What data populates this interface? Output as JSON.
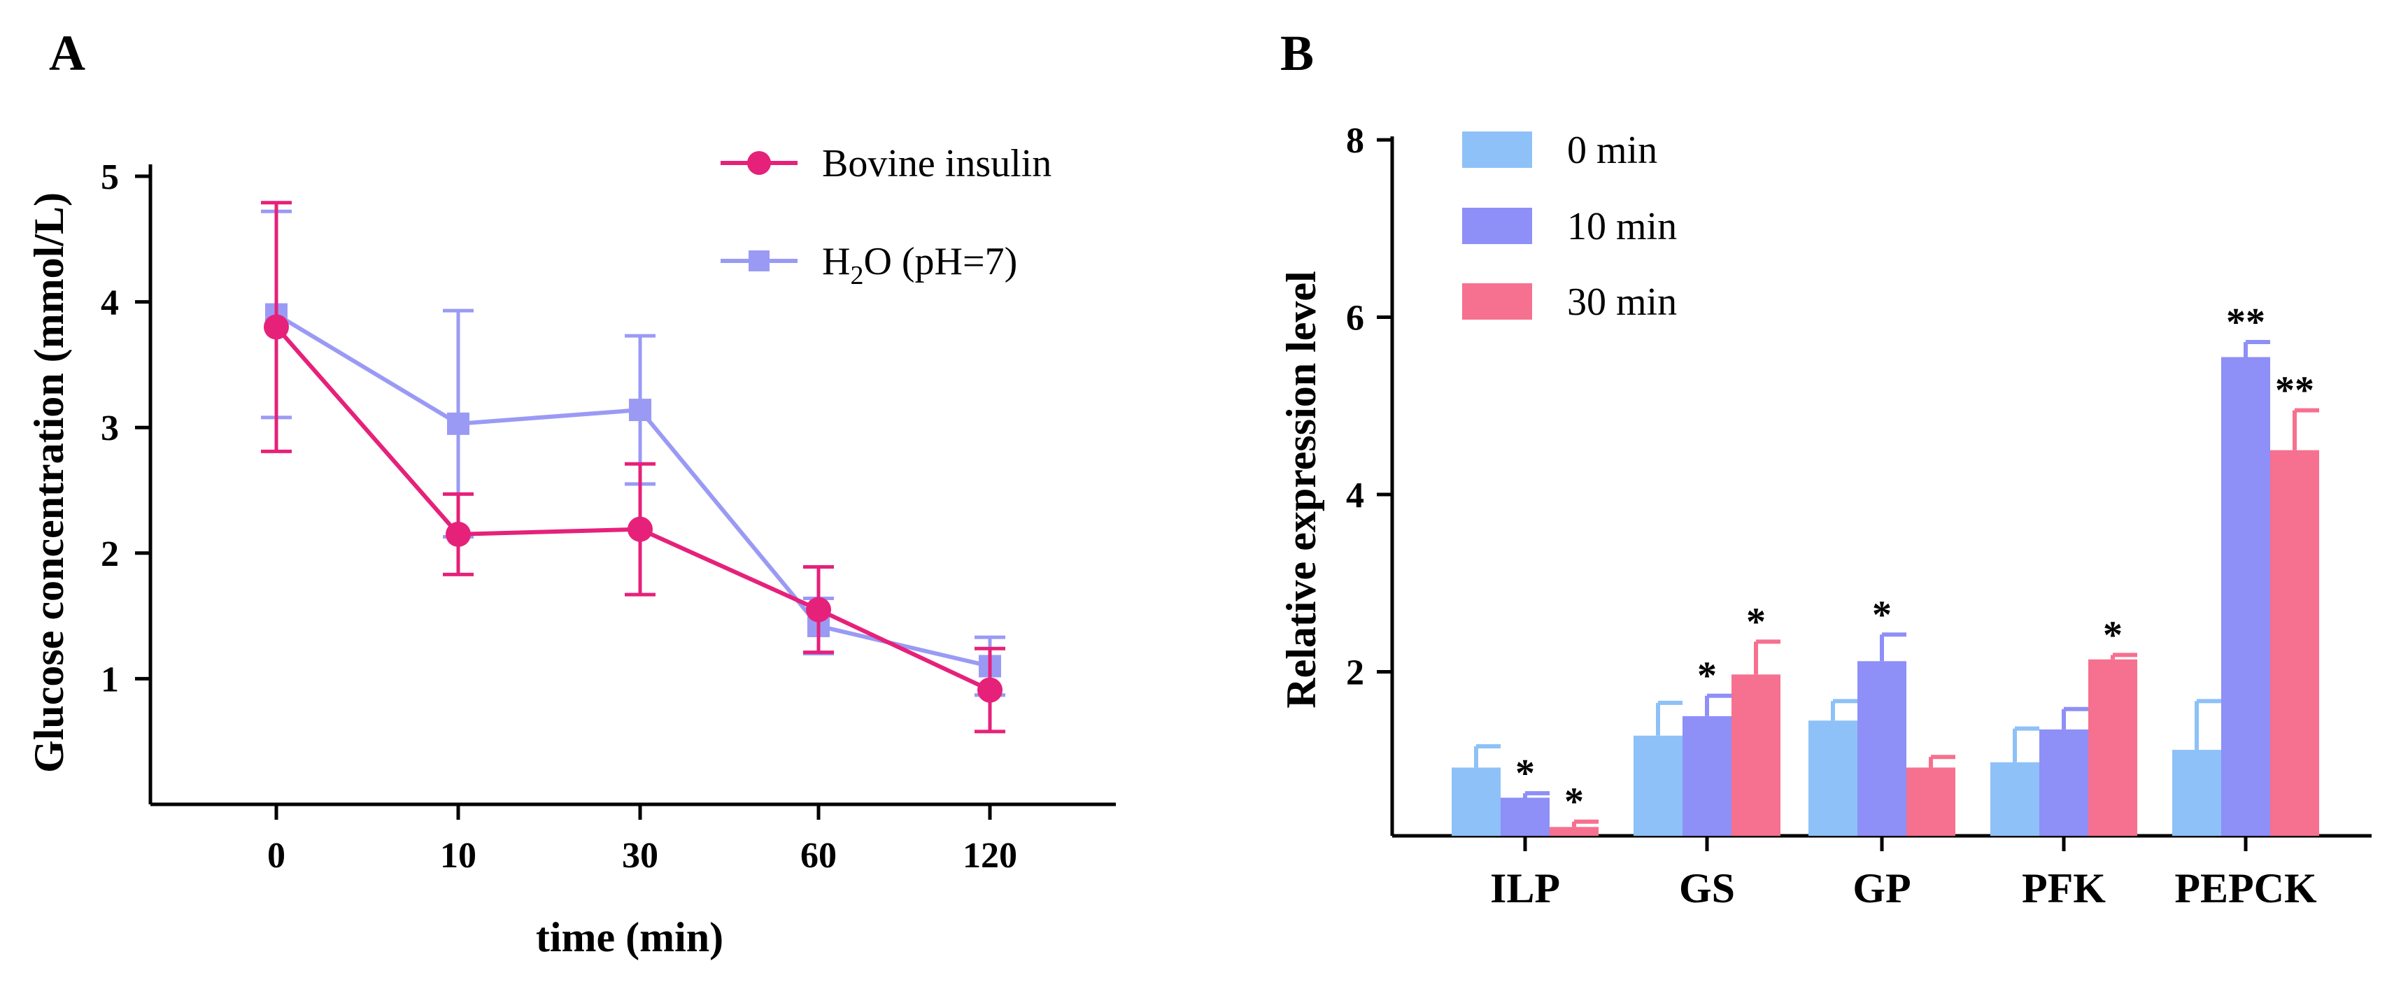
{
  "chart_data": [
    {
      "panel": "A",
      "type": "line",
      "xlabel": "time (min)",
      "ylabel": "Glucose concentration (mmol/L)",
      "categories": [
        "0",
        "10",
        "30",
        "60",
        "120"
      ],
      "ylim": [
        0,
        5
      ],
      "yticks": [
        1,
        2,
        3,
        4,
        5
      ],
      "legend_position": "top-right",
      "series": [
        {
          "name": "Bovine insulin",
          "color": "#e6217a",
          "marker": "circle",
          "values": [
            3.8,
            2.15,
            2.19,
            1.55,
            0.91
          ],
          "errors": [
            0.99,
            0.32,
            0.52,
            0.34,
            0.33
          ]
        },
        {
          "name_parts": [
            "H",
            "2",
            "O (pH=7)"
          ],
          "color": "#9a9af5",
          "marker": "square",
          "values": [
            3.9,
            3.03,
            3.14,
            1.42,
            1.1
          ],
          "errors": [
            0.82,
            0.9,
            0.59,
            0.22,
            0.23
          ]
        }
      ]
    },
    {
      "panel": "B",
      "type": "bar",
      "xlabel": "",
      "ylabel": "Relative expression level",
      "categories": [
        "ILP",
        "GS",
        "GP",
        "PFK",
        "PEPCK"
      ],
      "ylim": [
        0,
        8
      ],
      "ymin_visible": 0.15,
      "yticks": [
        2,
        4,
        6,
        8
      ],
      "legend_position": "top-left",
      "series": [
        {
          "name": "0 min",
          "color": "#8ec1f7",
          "values": [
            0.92,
            1.28,
            1.45,
            0.98,
            1.12
          ],
          "errors": [
            0.24,
            0.37,
            0.22,
            0.38,
            0.55
          ],
          "sig": [
            "",
            "",
            "",
            "",
            ""
          ]
        },
        {
          "name": "10 min",
          "color": "#8e8ff7",
          "values": [
            0.58,
            1.5,
            2.12,
            1.35,
            5.55
          ],
          "errors": [
            0.05,
            0.23,
            0.3,
            0.23,
            0.17
          ],
          "sig": [
            "*",
            "*",
            "*",
            "",
            "**"
          ]
        },
        {
          "name": "30 min",
          "color": "#f6708f",
          "values": [
            0.25,
            1.97,
            0.92,
            2.14,
            4.5
          ],
          "errors": [
            0.06,
            0.37,
            0.12,
            0.05,
            0.45
          ],
          "sig": [
            "*",
            "*",
            "",
            "*",
            "**"
          ]
        }
      ]
    }
  ]
}
